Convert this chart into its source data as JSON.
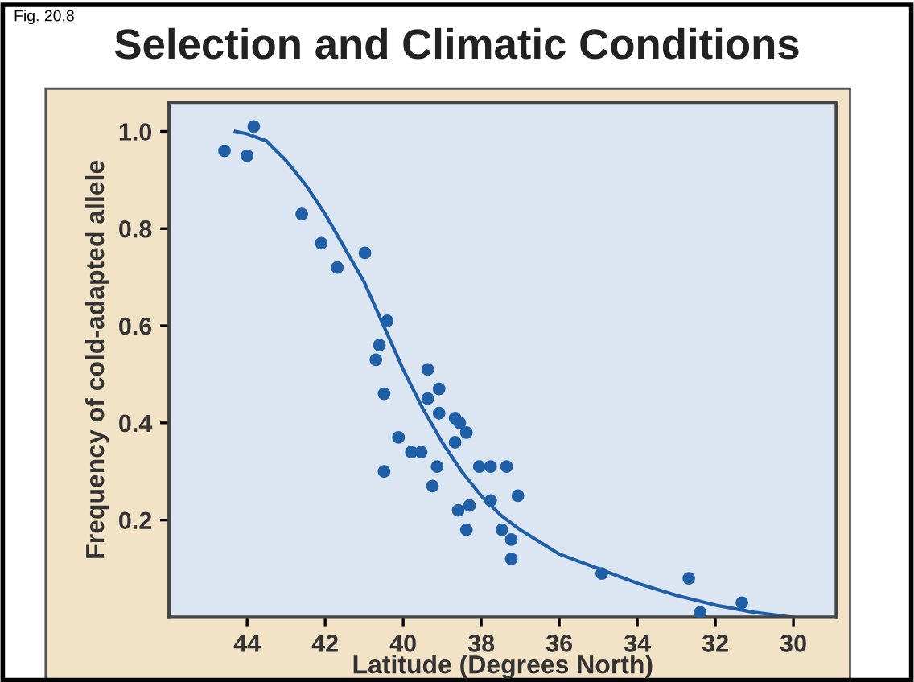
{
  "chart_data": {
    "type": "scatter",
    "title": "Selection and Climatic Conditions",
    "xlabel": "Latitude (Degrees North)",
    "ylabel": "Frequency of cold-adapted allele",
    "annotations": [
      "Fig. 20.8"
    ],
    "xlim": [
      46,
      28.9
    ],
    "ylim": [
      0,
      1.06
    ],
    "xticks": [
      44,
      42,
      40,
      38,
      36,
      34,
      32,
      30
    ],
    "yticks": [
      0.2,
      0.4,
      0.6,
      0.8,
      {
        "value": 1,
        "label": "1.0"
      }
    ],
    "grid": false,
    "legend": false,
    "series": [
      {
        "marker": "circle",
        "color": "#1f5fa8",
        "x": [
          44.58,
          44.0,
          43.83,
          42.6,
          42.1,
          41.69,
          40.98,
          40.41,
          40.61,
          40.7,
          40.49,
          40.49,
          40.12,
          39.79,
          39.54,
          39.37,
          39.37,
          39.08,
          39.08,
          39.25,
          39.13,
          38.67,
          38.55,
          38.38,
          38.67,
          38.59,
          38.3,
          38.38,
          38.05,
          37.76,
          37.35,
          37.76,
          37.06,
          37.47,
          37.23,
          37.23,
          34.91,
          32.68,
          32.39,
          31.32
        ],
        "values": [
          0.96,
          0.95,
          1.01,
          0.83,
          0.77,
          0.72,
          0.75,
          0.61,
          0.56,
          0.53,
          0.46,
          0.3,
          0.37,
          0.34,
          0.34,
          0.51,
          0.45,
          0.47,
          0.42,
          0.27,
          0.31,
          0.41,
          0.4,
          0.38,
          0.36,
          0.22,
          0.23,
          0.18,
          0.31,
          0.31,
          0.31,
          0.24,
          0.25,
          0.18,
          0.16,
          0.12,
          0.09,
          0.08,
          0.01,
          0.03
        ]
      },
      {
        "type": "line",
        "color": "#1f5fa8",
        "line_style": "solid",
        "marker": "none",
        "x": [
          44.3,
          44.0,
          43.5,
          43.0,
          42.5,
          42.0,
          41.5,
          41.0,
          40.5,
          40.0,
          39.5,
          39.0,
          38.5,
          38.0,
          37.5,
          37.0,
          36.0,
          35.0,
          34.0,
          33.0,
          32.0,
          31.0,
          30.0
        ],
        "values": [
          1.0,
          0.995,
          0.98,
          0.94,
          0.89,
          0.83,
          0.76,
          0.69,
          0.6,
          0.51,
          0.43,
          0.36,
          0.3,
          0.25,
          0.21,
          0.18,
          0.13,
          0.1,
          0.07,
          0.045,
          0.025,
          0.01,
          0.0
        ]
      }
    ]
  }
}
